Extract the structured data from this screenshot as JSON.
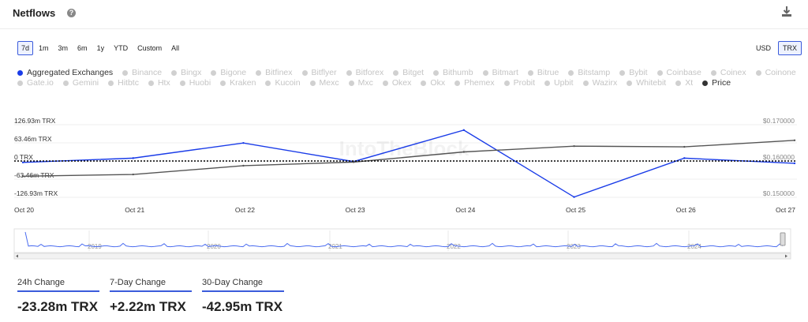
{
  "header": {
    "title": "Netflows"
  },
  "timeframes": [
    {
      "label": "7d",
      "active": true
    },
    {
      "label": "1m",
      "active": false
    },
    {
      "label": "3m",
      "active": false
    },
    {
      "label": "6m",
      "active": false
    },
    {
      "label": "1y",
      "active": false
    },
    {
      "label": "YTD",
      "active": false
    },
    {
      "label": "Custom",
      "active": false
    },
    {
      "label": "All",
      "active": false
    }
  ],
  "currencies": [
    {
      "label": "USD",
      "active": false
    },
    {
      "label": "TRX",
      "active": true
    }
  ],
  "legend": [
    {
      "label": "Aggregated Exchanges",
      "active": true,
      "color": "#1a3ce8"
    },
    {
      "label": "Binance",
      "active": false
    },
    {
      "label": "Bingx",
      "active": false
    },
    {
      "label": "Bigone",
      "active": false
    },
    {
      "label": "Bitfinex",
      "active": false
    },
    {
      "label": "Bitflyer",
      "active": false
    },
    {
      "label": "Bitforex",
      "active": false
    },
    {
      "label": "Bitget",
      "active": false
    },
    {
      "label": "Bithumb",
      "active": false
    },
    {
      "label": "Bitmart",
      "active": false
    },
    {
      "label": "Bitrue",
      "active": false
    },
    {
      "label": "Bitstamp",
      "active": false
    },
    {
      "label": "Bybit",
      "active": false
    },
    {
      "label": "Coinbase",
      "active": false
    },
    {
      "label": "Coinex",
      "active": false
    },
    {
      "label": "Coinone",
      "active": false
    },
    {
      "label": "Gate.io",
      "active": false
    },
    {
      "label": "Gemini",
      "active": false
    },
    {
      "label": "Hitbtc",
      "active": false
    },
    {
      "label": "Htx",
      "active": false
    },
    {
      "label": "Huobi",
      "active": false
    },
    {
      "label": "Kraken",
      "active": false
    },
    {
      "label": "Kucoin",
      "active": false
    },
    {
      "label": "Mexc",
      "active": false
    },
    {
      "label": "Mxc",
      "active": false
    },
    {
      "label": "Okex",
      "active": false
    },
    {
      "label": "Okx",
      "active": false
    },
    {
      "label": "Phemex",
      "active": false
    },
    {
      "label": "Probit",
      "active": false
    },
    {
      "label": "Upbit",
      "active": false
    },
    {
      "label": "Wazirx",
      "active": false
    },
    {
      "label": "Whitebit",
      "active": false
    },
    {
      "label": "Xt",
      "active": false
    },
    {
      "label": "Price",
      "active": true,
      "color": "#333333"
    }
  ],
  "chart_data": {
    "type": "line",
    "x": [
      "Oct 20",
      "Oct 21",
      "Oct 22",
      "Oct 23",
      "Oct 24",
      "Oct 25",
      "Oct 26",
      "Oct 27"
    ],
    "series": [
      {
        "name": "Aggregated Exchanges",
        "axis": "left",
        "color": "#1a3ce8",
        "values": [
          -5,
          10,
          63,
          -2,
          108,
          -126,
          10,
          -8
        ]
      },
      {
        "name": "Price",
        "axis": "right",
        "color": "#555555",
        "values": [
          0.1558,
          0.1563,
          0.1587,
          0.1597,
          0.1625,
          0.1641,
          0.1639,
          0.1657
        ]
      }
    ],
    "y_left": {
      "ticks": [
        "126.93m TRX",
        "63.46m TRX",
        "0 TRX",
        "-63.46m TRX",
        "-126.93m TRX"
      ],
      "tick_values": [
        126.93,
        63.46,
        0,
        -63.46,
        -126.93
      ],
      "range": [
        -126.93,
        126.93
      ]
    },
    "y_right": {
      "ticks": [
        "$0.170000",
        "$0.160000",
        "$0.150000"
      ],
      "tick_values": [
        0.17,
        0.16,
        0.15
      ],
      "range": [
        0.15,
        0.17
      ]
    },
    "watermark": "IntoTheBlock",
    "zero_line": "dotted"
  },
  "navigator": {
    "years": [
      "2019",
      "2020",
      "2021",
      "2022",
      "2023",
      "2024"
    ]
  },
  "stats": [
    {
      "label": "24h Change",
      "value": "-23.28m TRX"
    },
    {
      "label": "7-Day Change",
      "value": "+2.22m TRX"
    },
    {
      "label": "30-Day Change",
      "value": "-42.95m TRX"
    }
  ],
  "colors": {
    "accent": "#3b5bdb",
    "netflow": "#1a3ce8",
    "price": "#555555"
  }
}
